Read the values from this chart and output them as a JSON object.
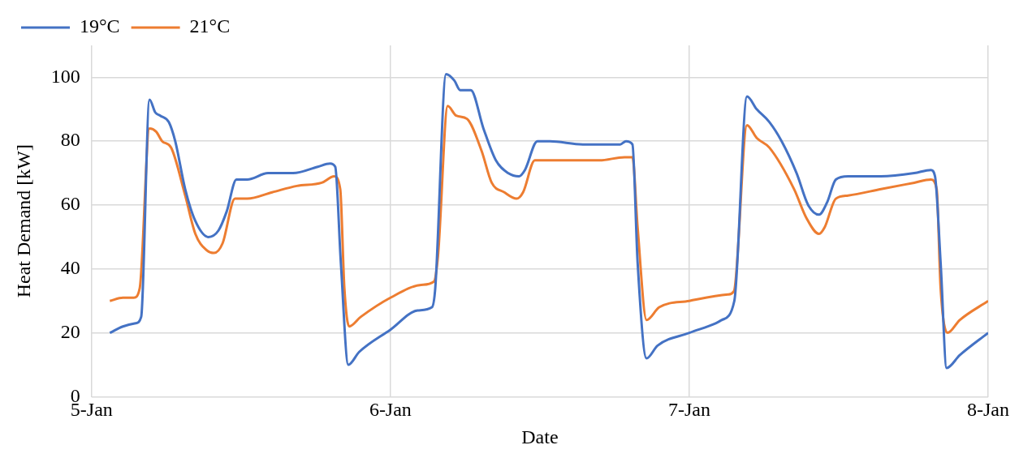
{
  "chart_data": {
    "type": "line",
    "xlabel": "Date",
    "ylabel": "Heat Demand [kW]",
    "xlim": [
      "--01-05",
      "--01-08"
    ],
    "xticks": [
      {
        "value": "--01-05",
        "label": "5-Jan"
      },
      {
        "value": "--01-06",
        "label": "6-Jan"
      },
      {
        "value": "--01-07",
        "label": "7-Jan"
      },
      {
        "value": "--01-08",
        "label": "8-Jan"
      }
    ],
    "ylim": [
      0,
      110
    ],
    "yticks": [
      0,
      20,
      40,
      60,
      80,
      100
    ],
    "grid": true,
    "legend": "top left",
    "marker": "none",
    "line_style": "solid",
    "series": [
      {
        "name": "19°C",
        "color": "#4472c4",
        "x": [
          "--01-05T01:28",
          "--01-05T02:31",
          "--01-05T03:32",
          "--01-05T03:59",
          "--01-05T04:39",
          "--01-05T05:07",
          "--01-05T05:31",
          "--01-05T06:12",
          "--01-05T06:43",
          "--01-05T07:31",
          "--01-05T08:20",
          "--01-05T09:23",
          "--01-05T10:11",
          "--01-05T10:51",
          "--01-05T11:38",
          "--01-05T12:30",
          "--01-05T14:10",
          "--01-05T16:11",
          "--01-05T18:10",
          "--01-05T19:09",
          "--01-05T19:34",
          "--01-05T20:01",
          "--01-05T20:37",
          "--01-05T21:29",
          "--01-06T00:00",
          "--01-06T02:11",
          "--01-06T03:20",
          "--01-06T03:36",
          "--01-06T04:28",
          "--01-06T05:08",
          "--01-06T05:36",
          "--01-06T06:27",
          "--01-06T07:28",
          "--01-06T08:28",
          "--01-06T09:27",
          "--01-06T10:19",
          "--01-06T10:48",
          "--01-06T11:48",
          "--01-06T12:48",
          "--01-06T15:27",
          "--01-06T18:27",
          "--01-06T18:55",
          "--01-06T19:26",
          "--01-06T19:51",
          "--01-06T20:34",
          "--01-06T21:27",
          "--01-07T00:00",
          "--01-07T02:07",
          "--01-07T02:36",
          "--01-07T03:37",
          "--01-07T04:38",
          "--01-07T05:25",
          "--01-07T06:26",
          "--01-07T07:25",
          "--01-07T08:37",
          "--01-07T09:33",
          "--01-07T10:25",
          "--01-07T11:05",
          "--01-07T11:46",
          "--01-07T12:45",
          "--01-07T15:24",
          "--01-07T18:04",
          "--01-07T19:24",
          "--01-07T19:44",
          "--01-07T20:11",
          "--01-07T20:40",
          "--01-07T21:43",
          "--01-08T00:00"
        ],
        "values": [
          20,
          22,
          23,
          25,
          93,
          89,
          88,
          86,
          80,
          65,
          55,
          50,
          52,
          58,
          68,
          68,
          70,
          70,
          72,
          73,
          72,
          42,
          10,
          14,
          21,
          27,
          28,
          34,
          101,
          99,
          96,
          96,
          84,
          74,
          70,
          69,
          71,
          80,
          80,
          79,
          79,
          80,
          79,
          42,
          12,
          16,
          20,
          23,
          24,
          30,
          94,
          90,
          86,
          80,
          70,
          60,
          57,
          61,
          68,
          69,
          69,
          70,
          71,
          69,
          42,
          9,
          13,
          20
        ]
      },
      {
        "name": "21°C",
        "color": "#ed7d31",
        "x": [
          "--01-05T01:28",
          "--01-05T02:31",
          "--01-05T03:23",
          "--01-05T03:52",
          "--01-05T04:39",
          "--01-05T05:11",
          "--01-05T05:40",
          "--01-05T06:23",
          "--01-05T07:31",
          "--01-05T08:20",
          "--01-05T09:12",
          "--01-05T09:50",
          "--01-05T10:31",
          "--01-05T11:31",
          "--01-05T12:30",
          "--01-05T14:30",
          "--01-05T16:29",
          "--01-05T18:29",
          "--01-05T19:29",
          "--01-05T19:58",
          "--01-05T20:18",
          "--01-05T20:41",
          "--01-05T21:37",
          "--01-06T00:00",
          "--01-06T02:28",
          "--01-06T03:29",
          "--01-06T03:49",
          "--01-06T04:36",
          "--01-06T05:17",
          "--01-06T06:09",
          "--01-06T07:19",
          "--01-06T08:08",
          "--01-06T09:09",
          "--01-06T10:08",
          "--01-06T10:39",
          "--01-06T11:36",
          "--01-06T12:48",
          "--01-06T16:47",
          "--01-06T18:48",
          "--01-06T19:26",
          "--01-06T19:51",
          "--01-06T20:34",
          "--01-06T21:35",
          "--01-07T00:00",
          "--01-07T03:06",
          "--01-07T03:35",
          "--01-07T04:38",
          "--01-07T05:25",
          "--01-07T06:26",
          "--01-07T08:25",
          "--01-07T09:24",
          "--01-07T10:25",
          "--01-07T10:52",
          "--01-07T11:46",
          "--01-07T12:45",
          "--01-07T15:24",
          "--01-07T18:04",
          "--01-07T19:24",
          "--01-07T19:52",
          "--01-07T20:11",
          "--01-07T20:44",
          "--01-07T21:43",
          "--01-08T00:00"
        ],
        "values": [
          30,
          31,
          31,
          34,
          84,
          83,
          80,
          78,
          63,
          51,
          46,
          45,
          48,
          62,
          62,
          64,
          66,
          67,
          69,
          65,
          34,
          22,
          25,
          31,
          35,
          36,
          44,
          91,
          88,
          87,
          77,
          67,
          64,
          62,
          64,
          74,
          74,
          74,
          75,
          75,
          53,
          24,
          28,
          30,
          32,
          33,
          85,
          81,
          78,
          65,
          56,
          51,
          53,
          62,
          63,
          65,
          67,
          68,
          65,
          34,
          20,
          24,
          30
        ]
      }
    ]
  }
}
